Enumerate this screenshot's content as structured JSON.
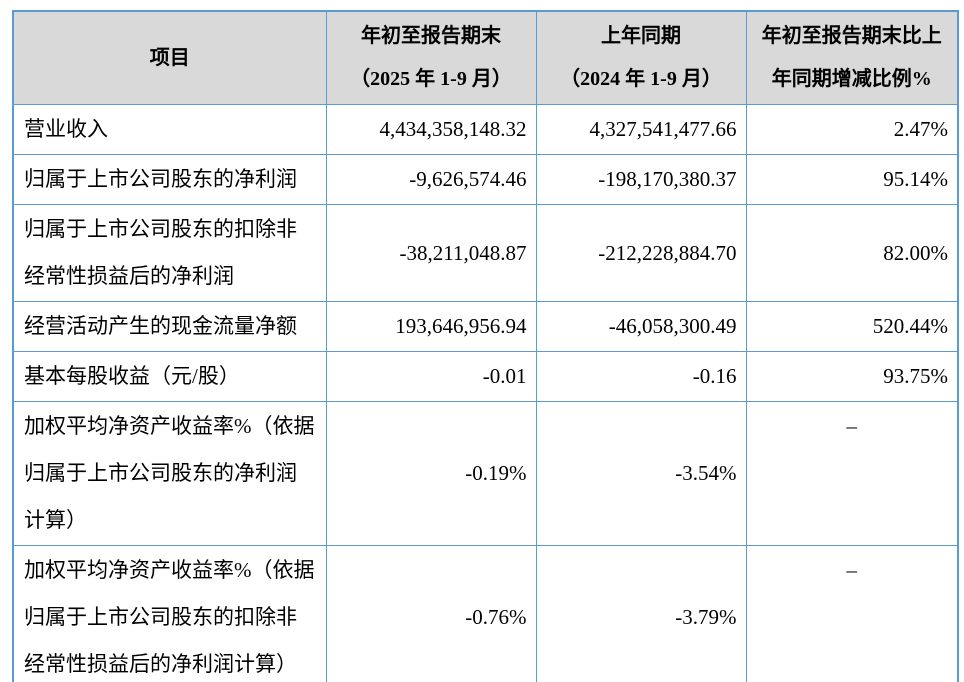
{
  "styles": {
    "border_color": "#5b9bd5",
    "header_bg": "#d9d9d9",
    "text_color": "#000000"
  },
  "header": {
    "item": [
      "项目"
    ],
    "current": [
      "年初至报告期末",
      "（2025 年 1-9 月）"
    ],
    "prior": [
      "上年同期",
      "（2024 年 1-9 月）"
    ],
    "change": [
      "年初至报告期末比上",
      "年同期增减比例%"
    ]
  },
  "rows": [
    {
      "label": [
        "营业收入"
      ],
      "current": "4,434,358,148.32",
      "prior": "4,327,541,477.66",
      "change": "2.47%"
    },
    {
      "label": [
        "归属于上市公司股东的净利润"
      ],
      "current": "-9,626,574.46",
      "prior": "-198,170,380.37",
      "change": "95.14%"
    },
    {
      "label": [
        "归属于上市公司股东的扣除非",
        "经常性损益后的净利润"
      ],
      "current": "-38,211,048.87",
      "prior": "-212,228,884.70",
      "change": "82.00%"
    },
    {
      "label": [
        "经营活动产生的现金流量净额"
      ],
      "current": "193,646,956.94",
      "prior": "-46,058,300.49",
      "change": "520.44%"
    },
    {
      "label": [
        "基本每股收益（元/股）"
      ],
      "current": "-0.01",
      "prior": "-0.16",
      "change": "93.75%"
    },
    {
      "label": [
        "加权平均净资产收益率%（依据",
        "归属于上市公司股东的净利润",
        "计算）"
      ],
      "current": "-0.19%",
      "prior": "-3.54%",
      "change": "–"
    },
    {
      "label": [
        "加权平均净资产收益率%（依据",
        "归属于上市公司股东的扣除非",
        "经常性损益后的净利润计算）"
      ],
      "current": "-0.76%",
      "prior": "-3.79%",
      "change": "–"
    }
  ]
}
